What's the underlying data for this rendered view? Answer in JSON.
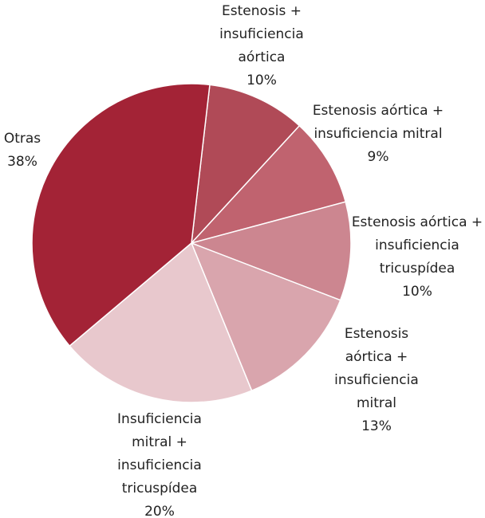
{
  "chart_data": {
    "type": "pie",
    "categories": [
      "Estenosis + insuficiencia aórtica",
      "Estenosis aórtica + insuficiencia mitral",
      "Estenosis aórtica + insuficiencia tricuspídea",
      "Estenosis aórtica + insuficiencia mitral",
      "Insuficiencia mitral + insuficiencia tricuspídea",
      "Otras"
    ],
    "values": [
      10,
      9,
      10,
      13,
      20,
      38
    ],
    "value_labels": [
      "10%",
      "9%",
      "10%",
      "13%",
      "20%",
      "38%"
    ],
    "colors": [
      "#b04a57",
      "#c0636f",
      "#cc8690",
      "#d9a5ad",
      "#e8c8cd",
      "#a32336"
    ]
  }
}
